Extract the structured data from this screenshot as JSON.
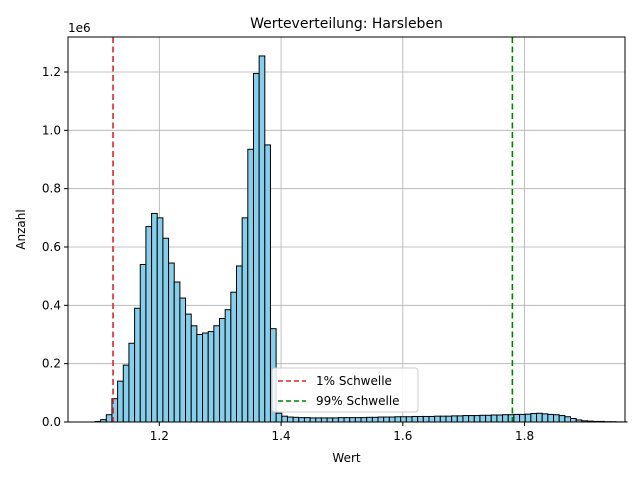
{
  "chart_data": {
    "type": "bar",
    "title": "Werteverteilung: Harsleben",
    "xlabel": "Wert",
    "ylabel": "Anzahl",
    "y_offset_label": "1e6",
    "xlim": [
      1.05,
      1.965
    ],
    "ylim": [
      0,
      1.32
    ],
    "x_ticks": [
      1.2,
      1.4,
      1.6,
      1.8
    ],
    "x_tick_labels": [
      "1.2",
      "1.4",
      "1.6",
      "1.8"
    ],
    "y_ticks": [
      0.0,
      0.2,
      0.4,
      0.6,
      0.8,
      1.0,
      1.2
    ],
    "y_tick_labels": [
      "0.0",
      "0.2",
      "0.4",
      "0.6",
      "0.8",
      "1.0",
      "1.2"
    ],
    "grid": true,
    "bar_color": "#87ceeb",
    "bar_edge_color": "#000000",
    "bins_start": 1.085,
    "bin_width": 0.0093,
    "values": [
      0.0,
      0.002,
      0.008,
      0.025,
      0.08,
      0.14,
      0.195,
      0.27,
      0.39,
      0.54,
      0.67,
      0.715,
      0.7,
      0.63,
      0.545,
      0.48,
      0.425,
      0.37,
      0.33,
      0.3,
      0.305,
      0.31,
      0.33,
      0.355,
      0.385,
      0.445,
      0.535,
      0.7,
      0.935,
      1.195,
      1.255,
      0.95,
      0.32,
      0.03,
      0.02,
      0.017,
      0.016,
      0.015,
      0.015,
      0.014,
      0.014,
      0.014,
      0.014,
      0.014,
      0.015,
      0.015,
      0.015,
      0.015,
      0.015,
      0.016,
      0.016,
      0.017,
      0.017,
      0.017,
      0.018,
      0.018,
      0.018,
      0.019,
      0.019,
      0.019,
      0.019,
      0.02,
      0.02,
      0.02,
      0.021,
      0.021,
      0.022,
      0.022,
      0.022,
      0.023,
      0.023,
      0.024,
      0.024,
      0.025,
      0.025,
      0.026,
      0.026,
      0.027,
      0.029,
      0.03,
      0.028,
      0.026,
      0.025,
      0.022,
      0.018,
      0.012,
      0.007,
      0.004,
      0.003,
      0.002,
      0.002,
      0.001,
      0.001,
      0.0005,
      0.0003
    ],
    "thresholds": [
      {
        "name": "1% Schwelle",
        "x": 1.124,
        "color": "#d62728"
      },
      {
        "name": "99% Schwelle",
        "x": 1.78,
        "color": "#008000"
      }
    ],
    "legend_position": "lower center"
  }
}
